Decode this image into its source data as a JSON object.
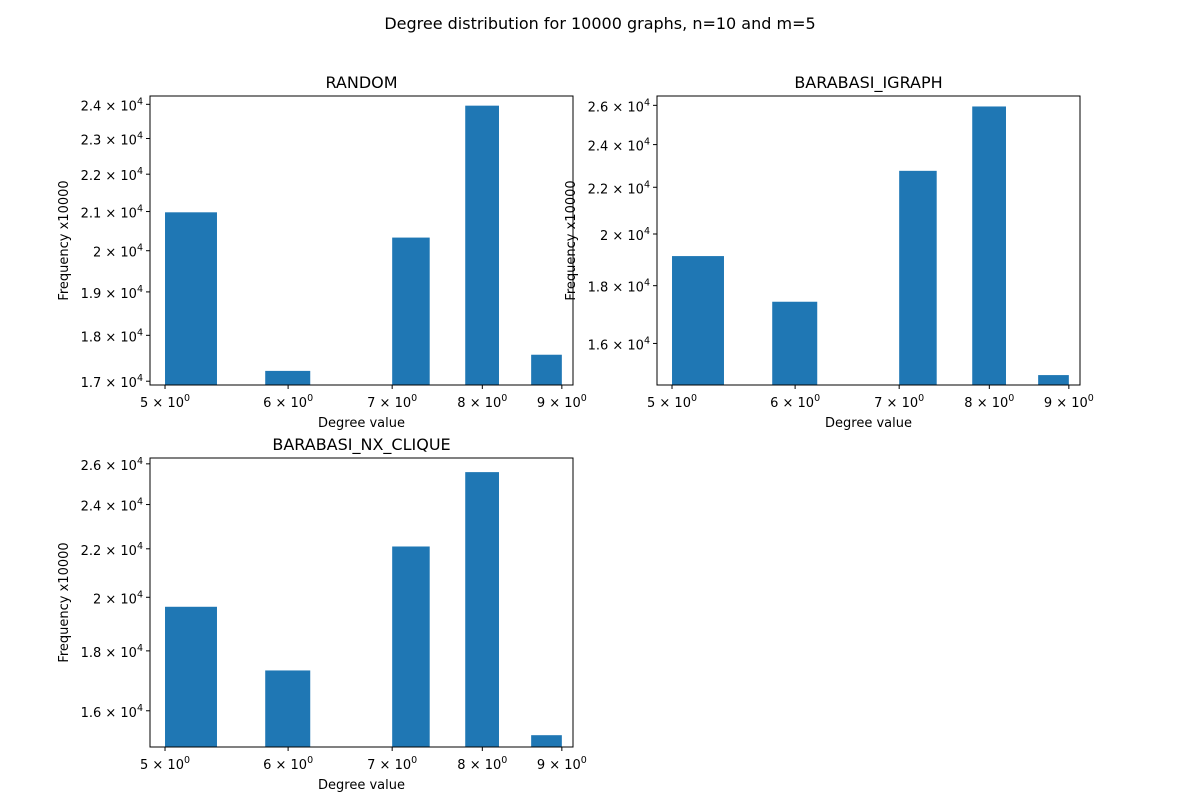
{
  "figure": {
    "suptitle": "Degree distribution for 10000 graphs, n=10 and m=5"
  },
  "colors": {
    "bar": "#1f77b4",
    "axis": "#000000",
    "background": "#ffffff"
  },
  "chart_data": [
    {
      "type": "bar",
      "title": "RANDOM",
      "xlabel": "Degree value",
      "ylabel": "Frequency x10000",
      "xscale": "log",
      "yscale": "log",
      "xlim": [
        4.89,
        9.15
      ],
      "ylim": [
        16920,
        24250
      ],
      "xticks": [
        5,
        6,
        7,
        8,
        9
      ],
      "xtick_labels": [
        {
          "base": "5 × 10",
          "exp": "0"
        },
        {
          "base": "6 × 10",
          "exp": "0"
        },
        {
          "base": "7 × 10",
          "exp": "0"
        },
        {
          "base": "8 × 10",
          "exp": "0"
        },
        {
          "base": "9 × 10",
          "exp": "0"
        }
      ],
      "yticks": [
        17000,
        18000,
        19000,
        20000,
        21000,
        22000,
        23000,
        24000
      ],
      "ytick_labels": [
        {
          "base": "1.7 × 10",
          "exp": "4"
        },
        {
          "base": "1.8 × 10",
          "exp": "4"
        },
        {
          "base": "1.9 × 10",
          "exp": "4"
        },
        {
          "base": "2 × 10",
          "exp": "4"
        },
        {
          "base": "2.1 × 10",
          "exp": "4"
        },
        {
          "base": "2.2 × 10",
          "exp": "4"
        },
        {
          "base": "2.3 × 10",
          "exp": "4"
        },
        {
          "base": "2.4 × 10",
          "exp": "4"
        }
      ],
      "bars": [
        {
          "x0": 5.0,
          "x1": 5.4,
          "value": 20980
        },
        {
          "x0": 5.8,
          "x1": 6.2,
          "value": 17220
        },
        {
          "x0": 7.0,
          "x1": 7.4,
          "value": 20330
        },
        {
          "x0": 7.8,
          "x1": 8.2,
          "value": 23960
        },
        {
          "x0": 8.6,
          "x1": 9.0,
          "value": 17570
        }
      ]
    },
    {
      "type": "bar",
      "title": "BARABASI_IGRAPH",
      "xlabel": "Degree value",
      "ylabel": "Frequency x10000",
      "xscale": "log",
      "yscale": "log",
      "xlim": [
        4.89,
        9.15
      ],
      "ylim": [
        14700,
        26500
      ],
      "xticks": [
        5,
        6,
        7,
        8,
        9
      ],
      "xtick_labels": [
        {
          "base": "5 × 10",
          "exp": "0"
        },
        {
          "base": "6 × 10",
          "exp": "0"
        },
        {
          "base": "7 × 10",
          "exp": "0"
        },
        {
          "base": "8 × 10",
          "exp": "0"
        },
        {
          "base": "9 × 10",
          "exp": "0"
        }
      ],
      "yticks": [
        16000,
        18000,
        20000,
        22000,
        24000,
        26000
      ],
      "ytick_labels": [
        {
          "base": "1.6 × 10",
          "exp": "4"
        },
        {
          "base": "1.8 × 10",
          "exp": "4"
        },
        {
          "base": "2 × 10",
          "exp": "4"
        },
        {
          "base": "2.2 × 10",
          "exp": "4"
        },
        {
          "base": "2.4 × 10",
          "exp": "4"
        },
        {
          "base": "2.6 × 10",
          "exp": "4"
        }
      ],
      "bars": [
        {
          "x0": 5.0,
          "x1": 5.4,
          "value": 19120
        },
        {
          "x0": 5.8,
          "x1": 6.2,
          "value": 17420
        },
        {
          "x0": 7.0,
          "x1": 7.4,
          "value": 22750
        },
        {
          "x0": 7.8,
          "x1": 8.2,
          "value": 25940
        },
        {
          "x0": 8.6,
          "x1": 9.0,
          "value": 15000
        }
      ]
    },
    {
      "type": "bar",
      "title": "BARABASI_NX_CLIQUE",
      "xlabel": "Degree value",
      "ylabel": "Frequency x10000",
      "xscale": "log",
      "yscale": "log",
      "xlim": [
        4.89,
        9.15
      ],
      "ylim": [
        14900,
        26300
      ],
      "xticks": [
        5,
        6,
        7,
        8,
        9
      ],
      "xtick_labels": [
        {
          "base": "5 × 10",
          "exp": "0"
        },
        {
          "base": "6 × 10",
          "exp": "0"
        },
        {
          "base": "7 × 10",
          "exp": "0"
        },
        {
          "base": "8 × 10",
          "exp": "0"
        },
        {
          "base": "9 × 10",
          "exp": "0"
        }
      ],
      "yticks": [
        16000,
        18000,
        20000,
        22000,
        24000,
        26000
      ],
      "ytick_labels": [
        {
          "base": "1.6 × 10",
          "exp": "4"
        },
        {
          "base": "1.8 × 10",
          "exp": "4"
        },
        {
          "base": "2 × 10",
          "exp": "4"
        },
        {
          "base": "2.2 × 10",
          "exp": "4"
        },
        {
          "base": "2.4 × 10",
          "exp": "4"
        },
        {
          "base": "2.6 × 10",
          "exp": "4"
        }
      ],
      "bars": [
        {
          "x0": 5.0,
          "x1": 5.4,
          "value": 19630
        },
        {
          "x0": 5.8,
          "x1": 6.2,
          "value": 17320
        },
        {
          "x0": 7.0,
          "x1": 7.4,
          "value": 22100
        },
        {
          "x0": 7.8,
          "x1": 8.2,
          "value": 25580
        },
        {
          "x0": 8.6,
          "x1": 9.0,
          "value": 15250
        }
      ]
    }
  ]
}
